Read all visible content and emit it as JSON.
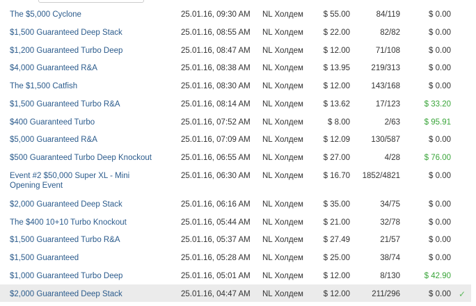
{
  "accent_link": "#2b5b8c",
  "win_color": "#3aa53a",
  "tournaments": [
    {
      "name": "The $5,000 Cyclone",
      "date": "25.01.16, 09:30 AM",
      "game": "NL Холдем",
      "buyin": "$ 55.00",
      "entries": "84/119",
      "win": "$ 0.00"
    },
    {
      "name": "$1,500 Guaranteed Deep Stack",
      "date": "25.01.16, 08:55 AM",
      "game": "NL Холдем",
      "buyin": "$ 22.00",
      "entries": "82/82",
      "win": "$ 0.00"
    },
    {
      "name": "$1,200 Guaranteed Turbo Deep",
      "date": "25.01.16, 08:47 AM",
      "game": "NL Холдем",
      "buyin": "$ 12.00",
      "entries": "71/108",
      "win": "$ 0.00"
    },
    {
      "name": "$4,000 Guaranteed R&A",
      "date": "25.01.16, 08:38 AM",
      "game": "NL Холдем",
      "buyin": "$ 13.95",
      "entries": "219/313",
      "win": "$ 0.00"
    },
    {
      "name": "The $1,500 Catfish",
      "date": "25.01.16, 08:30 AM",
      "game": "NL Холдем",
      "buyin": "$ 12.00",
      "entries": "143/168",
      "win": "$ 0.00"
    },
    {
      "name": "$1,500 Guaranteed Turbo R&A",
      "date": "25.01.16, 08:14 AM",
      "game": "NL Холдем",
      "buyin": "$ 13.62",
      "entries": "17/123",
      "win": "$ 33.20",
      "won": true
    },
    {
      "name": "$400 Guaranteed Turbo",
      "date": "25.01.16, 07:52 AM",
      "game": "NL Холдем",
      "buyin": "$ 8.00",
      "entries": "2/63",
      "win": "$ 95.91",
      "won": true
    },
    {
      "name": "$5,000 Guaranteed R&A",
      "date": "25.01.16, 07:09 AM",
      "game": "NL Холдем",
      "buyin": "$ 12.09",
      "entries": "130/587",
      "win": "$ 0.00"
    },
    {
      "name": "$500 Guaranteed Turbo Deep Knockout",
      "date": "25.01.16, 06:55 AM",
      "game": "NL Холдем",
      "buyin": "$ 27.00",
      "entries": "4/28",
      "win": "$ 76.00",
      "won": true
    },
    {
      "name": "Event #2 $50,000 Super XL - Mini Opening Event",
      "date": "25.01.16, 06:30 AM",
      "game": "NL Холдем",
      "buyin": "$ 16.70",
      "entries": "1852/4821",
      "win": "$ 0.00",
      "tall": true
    },
    {
      "name": "$2,000 Guaranteed Deep Stack",
      "date": "25.01.16, 06:16 AM",
      "game": "NL Холдем",
      "buyin": "$ 35.00",
      "entries": "34/75",
      "win": "$ 0.00"
    },
    {
      "name": "The $400 10+10 Turbo Knockout",
      "date": "25.01.16, 05:44 AM",
      "game": "NL Холдем",
      "buyin": "$ 21.00",
      "entries": "32/78",
      "win": "$ 0.00"
    },
    {
      "name": "$1,500 Guaranteed Turbo R&A",
      "date": "25.01.16, 05:37 AM",
      "game": "NL Холдем",
      "buyin": "$ 27.49",
      "entries": "21/57",
      "win": "$ 0.00"
    },
    {
      "name": "$1,500 Guaranteed",
      "date": "25.01.16, 05:28 AM",
      "game": "NL Холдем",
      "buyin": "$ 25.00",
      "entries": "38/74",
      "win": "$ 0.00"
    },
    {
      "name": "$1,000 Guaranteed Turbo Deep",
      "date": "25.01.16, 05:01 AM",
      "game": "NL Холдем",
      "buyin": "$ 12.00",
      "entries": "8/130",
      "win": "$ 42.90",
      "won": true
    },
    {
      "name": "$2,000 Guaranteed Deep Stack",
      "date": "25.01.16, 04:47 AM",
      "game": "NL Холдем",
      "buyin": "$ 12.00",
      "entries": "211/296",
      "win": "$ 0.00",
      "selected": true,
      "icon": "checkmark-icon"
    }
  ]
}
